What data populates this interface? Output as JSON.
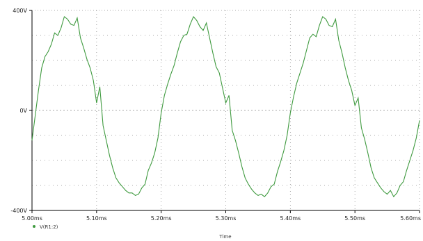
{
  "colors": {
    "trace": "#3f9a3f",
    "axis": "#000000",
    "grid": "#8c8c8c",
    "background": "#ffffff"
  },
  "chart_data": {
    "type": "line",
    "title": "",
    "xlabel": "Time",
    "ylabel": "",
    "xlim": [
      5.0,
      5.6
    ],
    "ylim": [
      -400,
      400
    ],
    "x_tick_labels": [
      "5.00ms",
      "5.10ms",
      "5.20ms",
      "5.30ms",
      "5.40ms",
      "5.50ms",
      "5.60ms"
    ],
    "y_tick_labels": [
      "400V",
      "0V",
      "-400V"
    ],
    "grid": true,
    "legend": {
      "position": "bottom-left",
      "symbol": "circle"
    },
    "series": [
      {
        "name": "V(R1:2)",
        "x": [
          5.0,
          5.005,
          5.01,
          5.015,
          5.02,
          5.025,
          5.03,
          5.035,
          5.04,
          5.045,
          5.05,
          5.055,
          5.06,
          5.065,
          5.07,
          5.075,
          5.08,
          5.085,
          5.09,
          5.095,
          5.1,
          5.105,
          5.11,
          5.115,
          5.12,
          5.125,
          5.13,
          5.135,
          5.14,
          5.145,
          5.15,
          5.155,
          5.16,
          5.165,
          5.17,
          5.175,
          5.18,
          5.185,
          5.19,
          5.195,
          5.2,
          5.205,
          5.21,
          5.215,
          5.22,
          5.225,
          5.23,
          5.235,
          5.24,
          5.245,
          5.25,
          5.255,
          5.26,
          5.265,
          5.27,
          5.275,
          5.28,
          5.285,
          5.29,
          5.295,
          5.3,
          5.305,
          5.31,
          5.315,
          5.32,
          5.325,
          5.33,
          5.335,
          5.34,
          5.345,
          5.35,
          5.355,
          5.36,
          5.365,
          5.37,
          5.375,
          5.38,
          5.385,
          5.39,
          5.395,
          5.4,
          5.405,
          5.41,
          5.415,
          5.42,
          5.425,
          5.43,
          5.435,
          5.44,
          5.445,
          5.45,
          5.455,
          5.46,
          5.465,
          5.47,
          5.475,
          5.48,
          5.485,
          5.49,
          5.495,
          5.5,
          5.505,
          5.51,
          5.515,
          5.52,
          5.525,
          5.53,
          5.535,
          5.54,
          5.545,
          5.55,
          5.555,
          5.56,
          5.565,
          5.57,
          5.575,
          5.58,
          5.585,
          5.59,
          5.595,
          5.6
        ],
        "y": [
          -120,
          -20,
          80,
          170,
          215,
          235,
          265,
          310,
          300,
          330,
          375,
          365,
          345,
          340,
          370,
          290,
          250,
          205,
          170,
          120,
          30,
          95,
          -60,
          -120,
          -180,
          -230,
          -270,
          -290,
          -305,
          -320,
          -330,
          -330,
          -340,
          -335,
          -310,
          -295,
          -240,
          -210,
          -170,
          -110,
          -10,
          60,
          105,
          145,
          180,
          230,
          275,
          300,
          305,
          345,
          375,
          360,
          335,
          320,
          350,
          290,
          230,
          175,
          150,
          90,
          30,
          60,
          -80,
          -120,
          -170,
          -225,
          -270,
          -295,
          -315,
          -330,
          -340,
          -335,
          -345,
          -330,
          -305,
          -295,
          -245,
          -205,
          -160,
          -100,
          -10,
          55,
          110,
          150,
          190,
          240,
          290,
          305,
          295,
          340,
          375,
          365,
          340,
          335,
          365,
          280,
          230,
          170,
          120,
          80,
          20,
          50,
          -70,
          -115,
          -170,
          -230,
          -270,
          -290,
          -310,
          -325,
          -335,
          -320,
          -345,
          -330,
          -300,
          -285,
          -240,
          -200,
          -160,
          -110,
          -40
        ]
      }
    ]
  }
}
